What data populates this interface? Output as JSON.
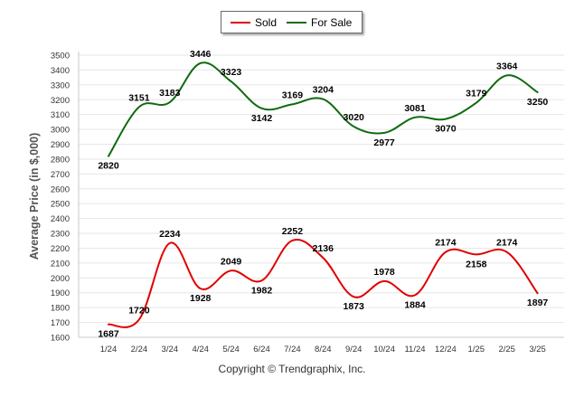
{
  "chart_data": {
    "type": "line",
    "title": "",
    "xlabel": "",
    "ylabel": "Average Price (in $,000)",
    "categories": [
      "1/24",
      "2/24",
      "3/24",
      "4/24",
      "5/24",
      "6/24",
      "7/24",
      "8/24",
      "9/24",
      "10/24",
      "11/24",
      "12/24",
      "1/25",
      "2/25",
      "3/25"
    ],
    "ylim": [
      1600,
      3500
    ],
    "yticks": [
      1600,
      1700,
      1800,
      1900,
      2000,
      2100,
      2200,
      2300,
      2400,
      2500,
      2600,
      2700,
      2800,
      2900,
      3000,
      3100,
      3200,
      3300,
      3400,
      3500
    ],
    "grid": true,
    "legend_position": "top-center",
    "series": [
      {
        "name": "Sold",
        "color": "#e00000",
        "values": [
          1687,
          1720,
          2234,
          1928,
          2049,
          1982,
          2252,
          2136,
          1873,
          1978,
          1884,
          2174,
          2158,
          2174,
          1897
        ]
      },
      {
        "name": "For Sale",
        "color": "#0f6a0f",
        "values": [
          2820,
          3151,
          3183,
          3446,
          3323,
          3142,
          3169,
          3204,
          3020,
          2977,
          3081,
          3070,
          3179,
          3364,
          3250
        ]
      }
    ]
  },
  "footer": {
    "copyright": "Copyright © Trendgraphix, Inc."
  }
}
